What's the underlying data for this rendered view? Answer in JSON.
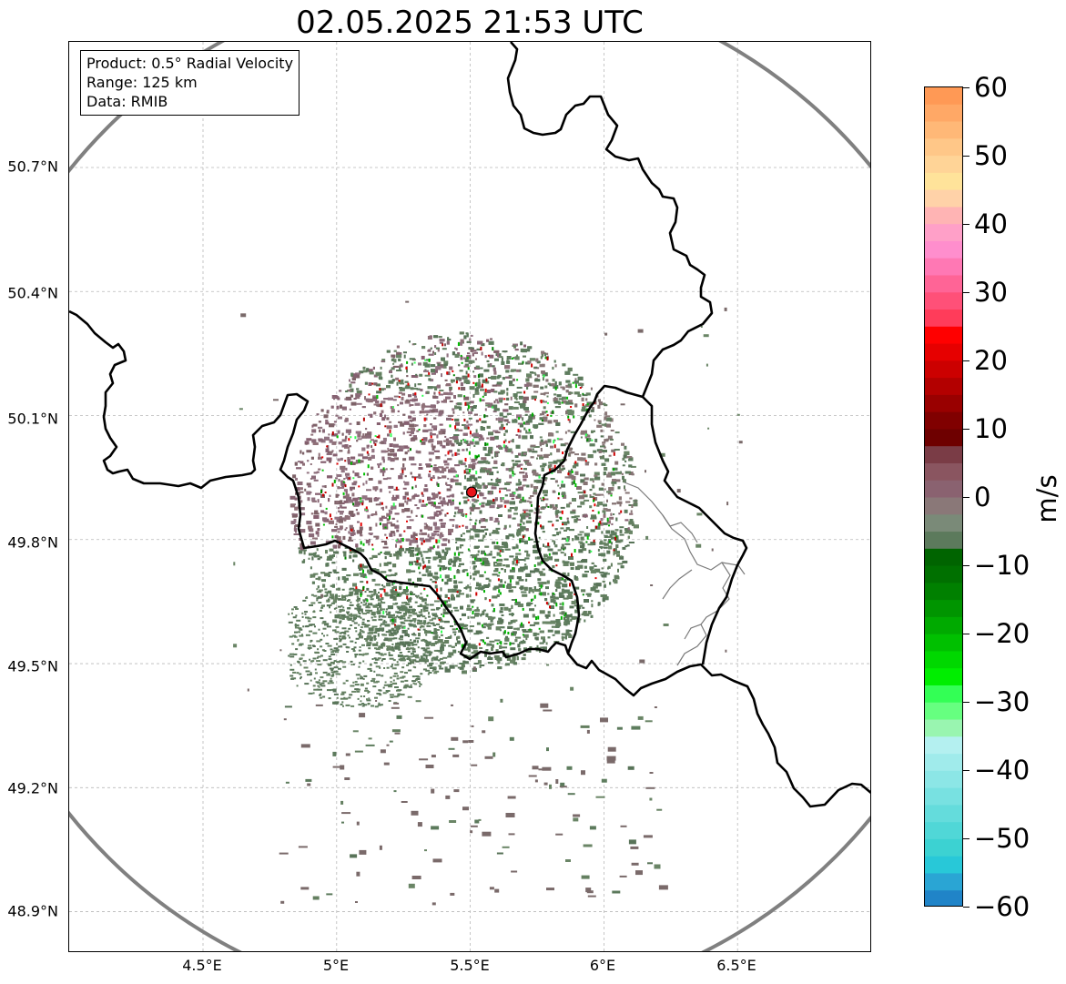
{
  "title": "02.05.2025 21:53 UTC",
  "info_box": {
    "product": "Product: 0.5° Radial Velocity",
    "range": "Range: 125 km",
    "source": "Data: RMIB"
  },
  "axes": {
    "lat_labels": [
      "50.7°N",
      "50.4°N",
      "50.1°N",
      "49.8°N",
      "49.5°N",
      "49.2°N",
      "48.9°N"
    ],
    "lon_labels": [
      "4.5°E",
      "5°E",
      "5.5°E",
      "6°E",
      "6.5°E"
    ],
    "lat_range": [
      48.8,
      50.98
    ],
    "lon_range": [
      4.0,
      7.0
    ],
    "grid": true
  },
  "radar_site": {
    "lon": 5.505,
    "lat": 49.915,
    "marker_color": "#e8141a"
  },
  "range_ring_color": "#808080",
  "colorbar": {
    "label": "m/s",
    "min": -60,
    "max": 60,
    "ticks": [
      "60",
      "50",
      "40",
      "30",
      "20",
      "10",
      "0",
      "−10",
      "−20",
      "−30",
      "−40",
      "−50",
      "−60"
    ],
    "tick_values": [
      60,
      50,
      40,
      30,
      20,
      10,
      0,
      -10,
      -20,
      -30,
      -40,
      -50,
      -60
    ],
    "colors_top_to_bottom": [
      "#ff9955",
      "#ffa866",
      "#ffb877",
      "#ffc788",
      "#ffd497",
      "#ffe39a",
      "#ffd2a8",
      "#ffb4b4",
      "#ffa0c8",
      "#ff8ecd",
      "#ff78b4",
      "#ff6496",
      "#ff5078",
      "#ff3c5a",
      "#ff0000",
      "#e60000",
      "#cc0000",
      "#b30000",
      "#990000",
      "#800000",
      "#6e0000",
      "#7a3c46",
      "#8a5560",
      "#8a6270",
      "#8a7878",
      "#7a8a78",
      "#5c7a5c",
      "#006400",
      "#007000",
      "#008000",
      "#009500",
      "#00aa00",
      "#00c000",
      "#00d800",
      "#00ee00",
      "#33ff55",
      "#66ff80",
      "#99f5b0",
      "#b4f0f0",
      "#a0ebeb",
      "#8ce6e6",
      "#78e1e1",
      "#64dcdc",
      "#50d7d7",
      "#3cd2d2",
      "#28c8d8",
      "#2aa5d4",
      "#2084c8"
    ]
  }
}
